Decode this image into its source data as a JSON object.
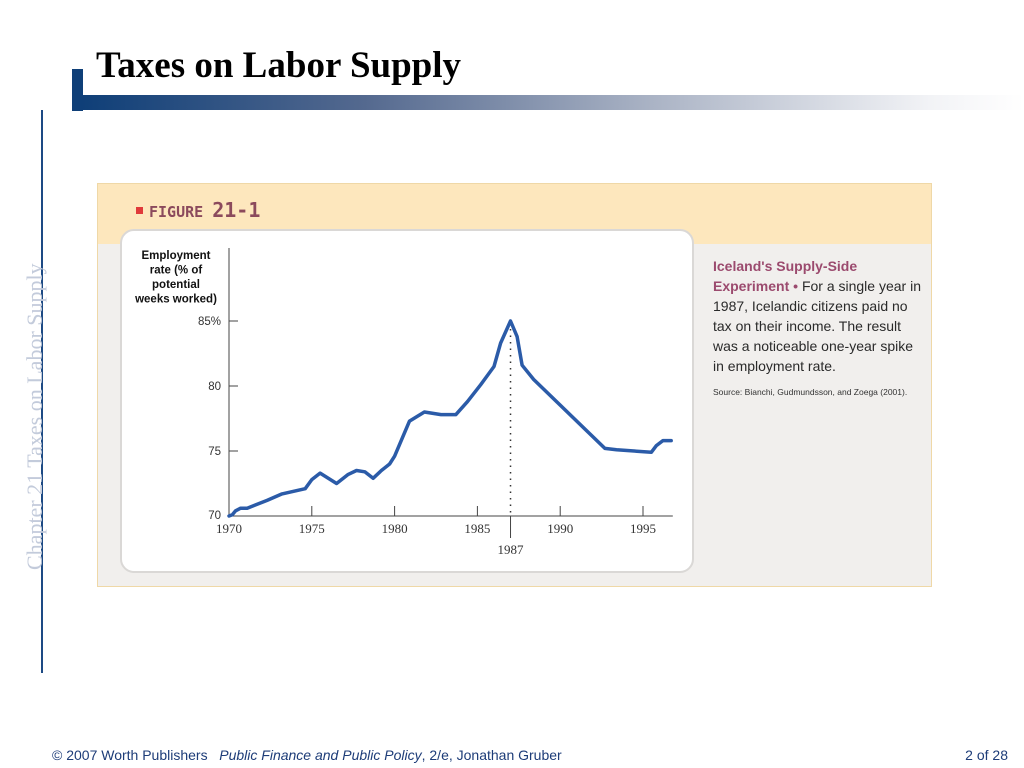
{
  "slide": {
    "title": "Taxes on Labor Supply",
    "side_label": "Chapter 21  Taxes on Labor Supply",
    "footer": {
      "copyright": "© 2007 Worth Publishers",
      "book": "Public Finance and Public Policy",
      "edition": ", 2/e, Jonathan Gruber",
      "page": "2 of 28"
    },
    "colors": {
      "accent": "#0f3f78",
      "line": "#2b5ba8",
      "figure_header": "#fde7bd",
      "caption_highlight": "#9b4a6e"
    }
  },
  "figure": {
    "label": "FIGURE",
    "number": "21-1",
    "caption_title": "Iceland's Supply-Side Experiment",
    "caption_bullet": " • ",
    "caption_text": "For a single year in 1987, Icelandic citizens paid no tax on their income. The result was a noticeable one-year spike in employment rate.",
    "source": "Source: Bianchi, Gudmundsson, and Zoega (2001)."
  },
  "chart_data": {
    "type": "line",
    "title": "",
    "xlabel": "",
    "ylabel": "Employment rate (% of potential weeks worked)",
    "xlim": [
      1970,
      1996.8
    ],
    "ylim": [
      70,
      85
    ],
    "x_ticks": [
      1970,
      1975,
      1980,
      1985,
      1990,
      1995
    ],
    "x_tick_labels": [
      "1970",
      "1975",
      "1980",
      "1985",
      "1990",
      "1995"
    ],
    "y_ticks": [
      70,
      75,
      80,
      85
    ],
    "y_tick_labels": [
      "70",
      "75",
      "80",
      "85%"
    ],
    "annotation": {
      "x": 1987,
      "label": "1987",
      "style": "dotted vertical line"
    },
    "grid": false,
    "series": [
      {
        "x": [
          1970.0,
          1970.2,
          1970.4,
          1970.7,
          1971.1,
          1972.3,
          1973.2,
          1974.6,
          1975.0,
          1975.5,
          1976.5,
          1977.2,
          1977.7,
          1978.2,
          1978.7,
          1979.2,
          1979.7,
          1980.0,
          1980.9,
          1981.8,
          1982.8,
          1983.7,
          1984.4,
          1985.2,
          1986.0,
          1986.4,
          1987.0,
          1987.4,
          1987.7,
          1988.4,
          1992.7,
          1993.4,
          1995.5,
          1995.8,
          1996.2,
          1996.7
        ],
        "y": [
          70.0,
          70.1,
          70.4,
          70.6,
          70.6,
          71.2,
          71.7,
          72.1,
          72.8,
          73.3,
          72.5,
          73.2,
          73.5,
          73.4,
          72.9,
          73.5,
          74.0,
          74.6,
          77.3,
          78.0,
          77.8,
          77.8,
          78.8,
          80.1,
          81.5,
          83.3,
          85.0,
          83.8,
          81.6,
          80.5,
          75.2,
          75.1,
          74.9,
          75.4,
          75.8,
          75.8
        ]
      }
    ]
  }
}
